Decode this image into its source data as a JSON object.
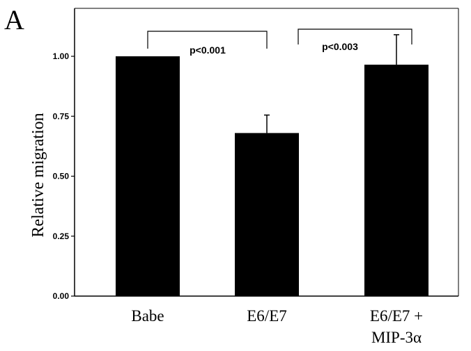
{
  "chart_data": {
    "type": "bar",
    "panel_label": "A",
    "ylabel": "Relative migration",
    "ylim": [
      0,
      1.2
    ],
    "y_ticks": [
      "0.00",
      "0.25",
      "0.50",
      "0.75",
      "1.00"
    ],
    "categories": [
      {
        "lines": [
          "Babe"
        ]
      },
      {
        "lines": [
          "E6/E7"
        ]
      },
      {
        "lines": [
          "E6/E7 +",
          "MIP-3α"
        ]
      }
    ],
    "values": [
      1.0,
      0.68,
      0.965
    ],
    "error_upper": [
      0.0,
      0.075,
      0.125
    ],
    "bar_color": "#000000",
    "grid": false,
    "significance": [
      {
        "from": 0,
        "to": 1,
        "label": "p<0.001"
      },
      {
        "from": 1,
        "to": 2,
        "label": "p<0.003"
      }
    ]
  }
}
